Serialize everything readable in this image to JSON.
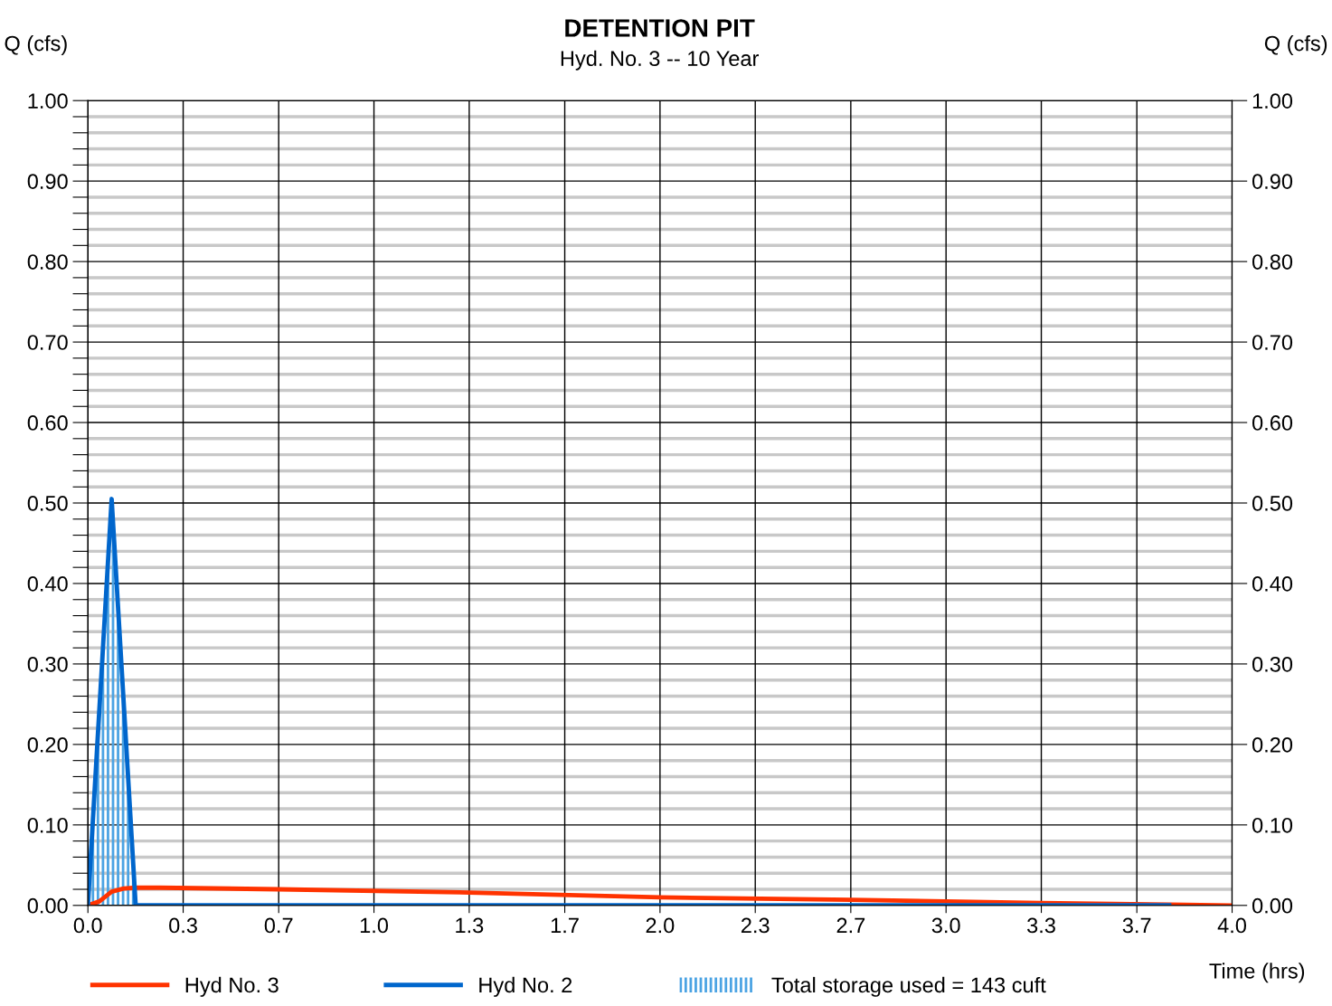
{
  "chart_data": {
    "type": "line",
    "title": "DETENTION PIT",
    "subtitle": "Hyd. No. 3 -- 10 Year",
    "xlabel": "Time (hrs)",
    "ylabel": "Q (cfs)",
    "y2label": "Q (cfs)",
    "xlim": [
      0,
      4.0
    ],
    "ylim": [
      0,
      1.0
    ],
    "y2lim": [
      0,
      1.0
    ],
    "xticks": [
      {
        "value": 0,
        "label": "0.0"
      },
      {
        "value": 0.333,
        "label": "0.3"
      },
      {
        "value": 0.667,
        "label": "0.7"
      },
      {
        "value": 1.0,
        "label": "1.0"
      },
      {
        "value": 1.333,
        "label": "1.3"
      },
      {
        "value": 1.667,
        "label": "1.7"
      },
      {
        "value": 2.0,
        "label": "2.0"
      },
      {
        "value": 2.333,
        "label": "2.3"
      },
      {
        "value": 2.667,
        "label": "2.7"
      },
      {
        "value": 3.0,
        "label": "3.0"
      },
      {
        "value": 3.333,
        "label": "3.3"
      },
      {
        "value": 3.667,
        "label": "3.7"
      },
      {
        "value": 4.0,
        "label": "4.0"
      }
    ],
    "yticks": [
      {
        "value": 0,
        "label": "0.00"
      },
      {
        "value": 0.02,
        "label": null
      },
      {
        "value": 0.04,
        "label": null
      },
      {
        "value": 0.06,
        "label": null
      },
      {
        "value": 0.08,
        "label": null
      },
      {
        "value": 0.1,
        "label": "0.10"
      },
      {
        "value": 0.12,
        "label": null
      },
      {
        "value": 0.14,
        "label": null
      },
      {
        "value": 0.16,
        "label": null
      },
      {
        "value": 0.18,
        "label": null
      },
      {
        "value": 0.2,
        "label": "0.20"
      },
      {
        "value": 0.22,
        "label": null
      },
      {
        "value": 0.24,
        "label": null
      },
      {
        "value": 0.26,
        "label": null
      },
      {
        "value": 0.28,
        "label": null
      },
      {
        "value": 0.3,
        "label": "0.30"
      },
      {
        "value": 0.32,
        "label": null
      },
      {
        "value": 0.34,
        "label": null
      },
      {
        "value": 0.36,
        "label": null
      },
      {
        "value": 0.38,
        "label": null
      },
      {
        "value": 0.4,
        "label": "0.40"
      },
      {
        "value": 0.42,
        "label": null
      },
      {
        "value": 0.44,
        "label": null
      },
      {
        "value": 0.46,
        "label": null
      },
      {
        "value": 0.48,
        "label": null
      },
      {
        "value": 0.5,
        "label": "0.50"
      },
      {
        "value": 0.52,
        "label": null
      },
      {
        "value": 0.54,
        "label": null
      },
      {
        "value": 0.56,
        "label": null
      },
      {
        "value": 0.58,
        "label": null
      },
      {
        "value": 0.6,
        "label": "0.60"
      },
      {
        "value": 0.62,
        "label": null
      },
      {
        "value": 0.64,
        "label": null
      },
      {
        "value": 0.66,
        "label": null
      },
      {
        "value": 0.68,
        "label": null
      },
      {
        "value": 0.7,
        "label": "0.70"
      },
      {
        "value": 0.72,
        "label": null
      },
      {
        "value": 0.74,
        "label": null
      },
      {
        "value": 0.76,
        "label": null
      },
      {
        "value": 0.78,
        "label": null
      },
      {
        "value": 0.8,
        "label": "0.80"
      },
      {
        "value": 0.82,
        "label": null
      },
      {
        "value": 0.84,
        "label": null
      },
      {
        "value": 0.86,
        "label": null
      },
      {
        "value": 0.88,
        "label": null
      },
      {
        "value": 0.9,
        "label": "0.90"
      },
      {
        "value": 0.92,
        "label": null
      },
      {
        "value": 0.94,
        "label": null
      },
      {
        "value": 0.96,
        "label": null
      },
      {
        "value": 0.98,
        "label": null
      },
      {
        "value": 1.0,
        "label": "1.00"
      }
    ],
    "y2ticks": [
      {
        "value": 0,
        "label": "0.00"
      },
      {
        "value": 0.1,
        "label": "0.10"
      },
      {
        "value": 0.2,
        "label": "0.20"
      },
      {
        "value": 0.3,
        "label": "0.30"
      },
      {
        "value": 0.4,
        "label": "0.40"
      },
      {
        "value": 0.5,
        "label": "0.50"
      },
      {
        "value": 0.6,
        "label": "0.60"
      },
      {
        "value": 0.7,
        "label": "0.70"
      },
      {
        "value": 0.8,
        "label": "0.80"
      },
      {
        "value": 0.9,
        "label": "0.90"
      },
      {
        "value": 1.0,
        "label": "1.00"
      }
    ],
    "grid": true,
    "legend": "bottom",
    "marker": "none",
    "line_style": "solid",
    "series": [
      {
        "name": "Total storage used = 143 cuft",
        "type": "area",
        "color": "#4ba3e3",
        "x": [
          0,
          0.083,
          0.167
        ],
        "values": [
          0,
          0.505,
          0
        ]
      },
      {
        "name": "Hyd No. 3",
        "color": "#ff3300",
        "x": [
          0,
          0.04,
          0.083,
          0.125,
          0.167,
          0.25,
          0.667,
          1.333,
          2.0,
          2.667,
          3.0,
          3.333,
          3.78,
          4.0
        ],
        "values": [
          0,
          0.005,
          0.017,
          0.021,
          0.022,
          0.022,
          0.02,
          0.016,
          0.01,
          0.007,
          0.005,
          0.003,
          0.001,
          0
        ]
      },
      {
        "name": "Hyd No. 2",
        "color": "#0066cc",
        "x": [
          0,
          0.083,
          0.167,
          3.78
        ],
        "values": [
          0,
          0.505,
          0,
          0
        ]
      }
    ]
  }
}
